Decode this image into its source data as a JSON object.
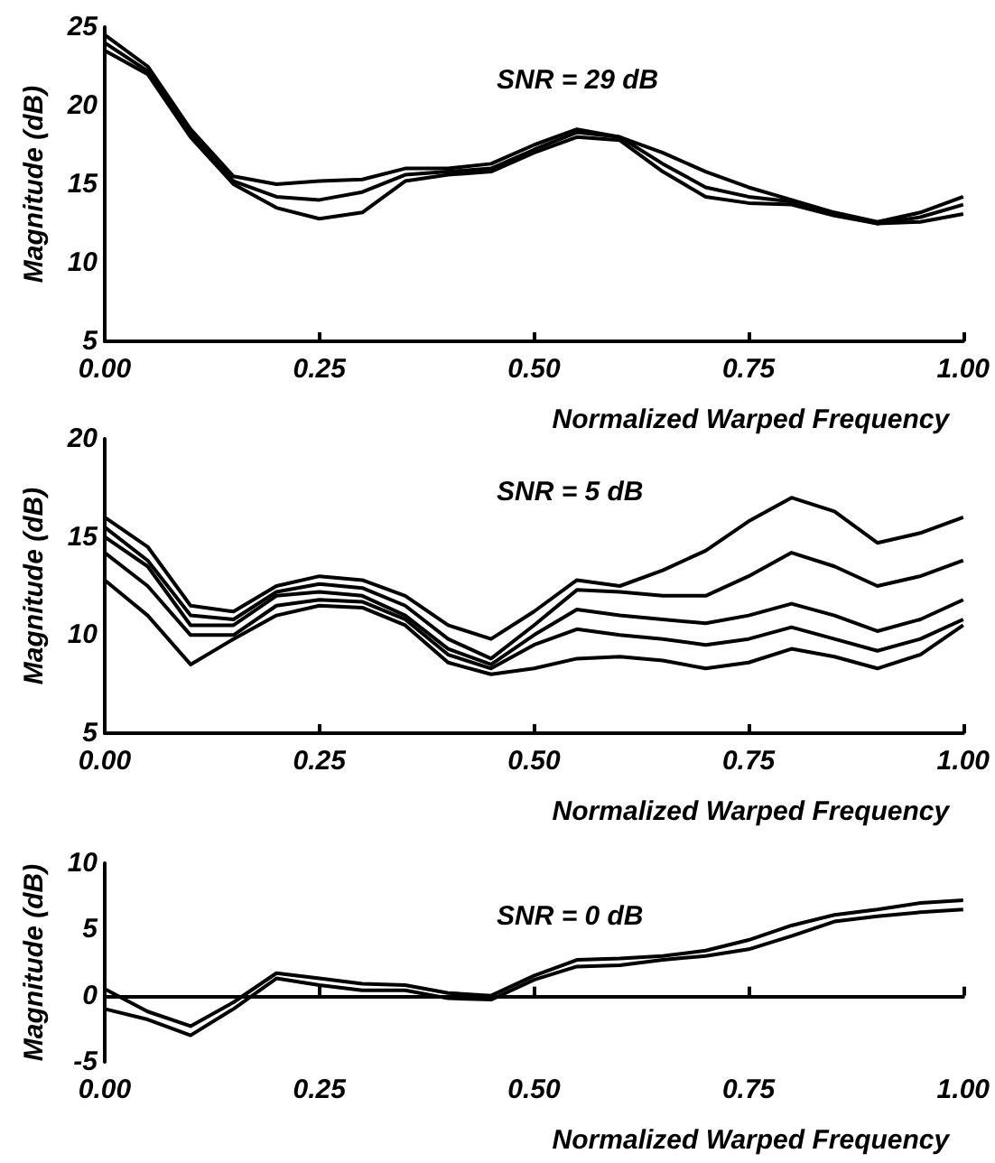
{
  "chart_data": [
    {
      "type": "line",
      "xlabel": "Normalized Warped Frequency",
      "ylabel": "Magnitude (dB)",
      "annotations": [
        "SNR = 29 dB"
      ],
      "x": [
        0,
        0.05,
        0.1,
        0.15,
        0.2,
        0.25,
        0.3,
        0.35,
        0.4,
        0.45,
        0.5,
        0.55,
        0.6,
        0.65,
        0.7,
        0.75,
        0.8,
        0.85,
        0.9,
        0.95,
        1.0
      ],
      "xlim": [
        0,
        1
      ],
      "xticks": [
        {
          "value": 0,
          "label": "0.00"
        },
        {
          "value": 0.25,
          "label": "0.25"
        },
        {
          "value": 0.5,
          "label": "0.50"
        },
        {
          "value": 0.75,
          "label": "0.75"
        },
        {
          "value": 1,
          "label": "1.00"
        }
      ],
      "ylim": [
        5,
        25
      ],
      "yticks": [
        5,
        10,
        15,
        20,
        25
      ],
      "series": [
        {
          "color": "#000000",
          "values": [
            24.5,
            22.5,
            18.5,
            15.5,
            15.0,
            15.2,
            15.3,
            16.0,
            16.0,
            16.3,
            17.5,
            18.5,
            18.0,
            17.0,
            15.8,
            14.8,
            14.0,
            13.2,
            12.6,
            13.2,
            14.2
          ]
        },
        {
          "color": "#000000",
          "values": [
            24.0,
            22.2,
            18.2,
            15.2,
            14.2,
            14.0,
            14.5,
            15.6,
            15.8,
            16.0,
            17.2,
            18.3,
            18.0,
            16.3,
            14.8,
            14.2,
            13.9,
            13.1,
            12.5,
            12.9,
            13.7
          ]
        },
        {
          "color": "#000000",
          "values": [
            23.5,
            22.0,
            18.0,
            15.0,
            13.5,
            12.8,
            13.2,
            15.2,
            15.6,
            15.8,
            17.0,
            18.0,
            17.8,
            15.8,
            14.2,
            13.8,
            13.7,
            13.0,
            12.5,
            12.6,
            13.1
          ]
        }
      ]
    },
    {
      "type": "line",
      "xlabel": "Normalized Warped Frequency",
      "ylabel": "Magnitude (dB)",
      "annotations": [
        "SNR = 5 dB"
      ],
      "x": [
        0,
        0.05,
        0.1,
        0.15,
        0.2,
        0.25,
        0.3,
        0.35,
        0.4,
        0.45,
        0.5,
        0.55,
        0.6,
        0.65,
        0.7,
        0.75,
        0.8,
        0.85,
        0.9,
        0.95,
        1.0
      ],
      "xlim": [
        0,
        1
      ],
      "xticks": [
        {
          "value": 0,
          "label": "0.00"
        },
        {
          "value": 0.25,
          "label": "0.25"
        },
        {
          "value": 0.5,
          "label": "0.50"
        },
        {
          "value": 0.75,
          "label": "0.75"
        },
        {
          "value": 1,
          "label": "1.00"
        }
      ],
      "ylim": [
        5,
        20
      ],
      "yticks": [
        5,
        10,
        15,
        20
      ],
      "series": [
        {
          "color": "#000000",
          "values": [
            16.0,
            14.5,
            11.5,
            11.2,
            12.5,
            13.0,
            12.8,
            12.0,
            10.5,
            9.8,
            11.2,
            12.8,
            12.5,
            13.3,
            14.3,
            15.8,
            17.0,
            16.3,
            14.7,
            15.2,
            16.0
          ]
        },
        {
          "color": "#000000",
          "values": [
            15.5,
            13.8,
            11.0,
            10.8,
            12.2,
            12.6,
            12.4,
            11.5,
            9.8,
            8.8,
            10.5,
            12.3,
            12.2,
            12.0,
            12.0,
            13.0,
            14.2,
            13.5,
            12.5,
            13.0,
            13.8
          ]
        },
        {
          "color": "#000000",
          "values": [
            15.0,
            13.5,
            10.5,
            10.5,
            12.0,
            12.2,
            12.0,
            11.0,
            9.3,
            8.5,
            10.0,
            11.3,
            11.0,
            10.8,
            10.6,
            11.0,
            11.6,
            11.0,
            10.2,
            10.8,
            11.8
          ]
        },
        {
          "color": "#000000",
          "values": [
            14.2,
            12.5,
            10.0,
            10.0,
            11.5,
            11.8,
            11.7,
            10.8,
            9.0,
            8.3,
            9.5,
            10.3,
            10.0,
            9.8,
            9.5,
            9.8,
            10.4,
            9.8,
            9.2,
            9.8,
            10.8
          ]
        },
        {
          "color": "#000000",
          "values": [
            12.8,
            11.0,
            8.5,
            9.8,
            11.0,
            11.5,
            11.4,
            10.5,
            8.6,
            8.0,
            8.3,
            8.8,
            8.9,
            8.7,
            8.3,
            8.6,
            9.3,
            8.9,
            8.3,
            9.0,
            10.5
          ]
        }
      ]
    },
    {
      "type": "line",
      "xlabel": "Normalized Warped Frequency",
      "ylabel": "Magnitude (dB)",
      "annotations": [
        "SNR = 0 dB"
      ],
      "x": [
        0,
        0.05,
        0.1,
        0.15,
        0.2,
        0.25,
        0.3,
        0.35,
        0.4,
        0.45,
        0.5,
        0.55,
        0.6,
        0.65,
        0.7,
        0.75,
        0.8,
        0.85,
        0.9,
        0.95,
        1.0
      ],
      "xlim": [
        0,
        1
      ],
      "xticks": [
        {
          "value": 0,
          "label": "0.00"
        },
        {
          "value": 0.25,
          "label": "0.25"
        },
        {
          "value": 0.5,
          "label": "0.50"
        },
        {
          "value": 0.75,
          "label": "0.75"
        },
        {
          "value": 1,
          "label": "1.00"
        }
      ],
      "ylim": [
        -5,
        10
      ],
      "yticks": [
        -5,
        0,
        5,
        10
      ],
      "series": [
        {
          "color": "#000000",
          "values": [
            0.5,
            -1.2,
            -2.3,
            -0.5,
            1.7,
            1.3,
            0.9,
            0.8,
            0.2,
            0.0,
            1.5,
            2.7,
            2.8,
            3.0,
            3.4,
            4.2,
            5.3,
            6.1,
            6.5,
            7.0,
            7.2
          ]
        },
        {
          "color": "#000000",
          "values": [
            -1.0,
            -1.8,
            -3.0,
            -1.0,
            1.3,
            0.8,
            0.4,
            0.4,
            -0.2,
            -0.3,
            1.2,
            2.2,
            2.3,
            2.7,
            3.0,
            3.5,
            4.5,
            5.6,
            6.0,
            6.3,
            6.5
          ]
        }
      ]
    }
  ]
}
